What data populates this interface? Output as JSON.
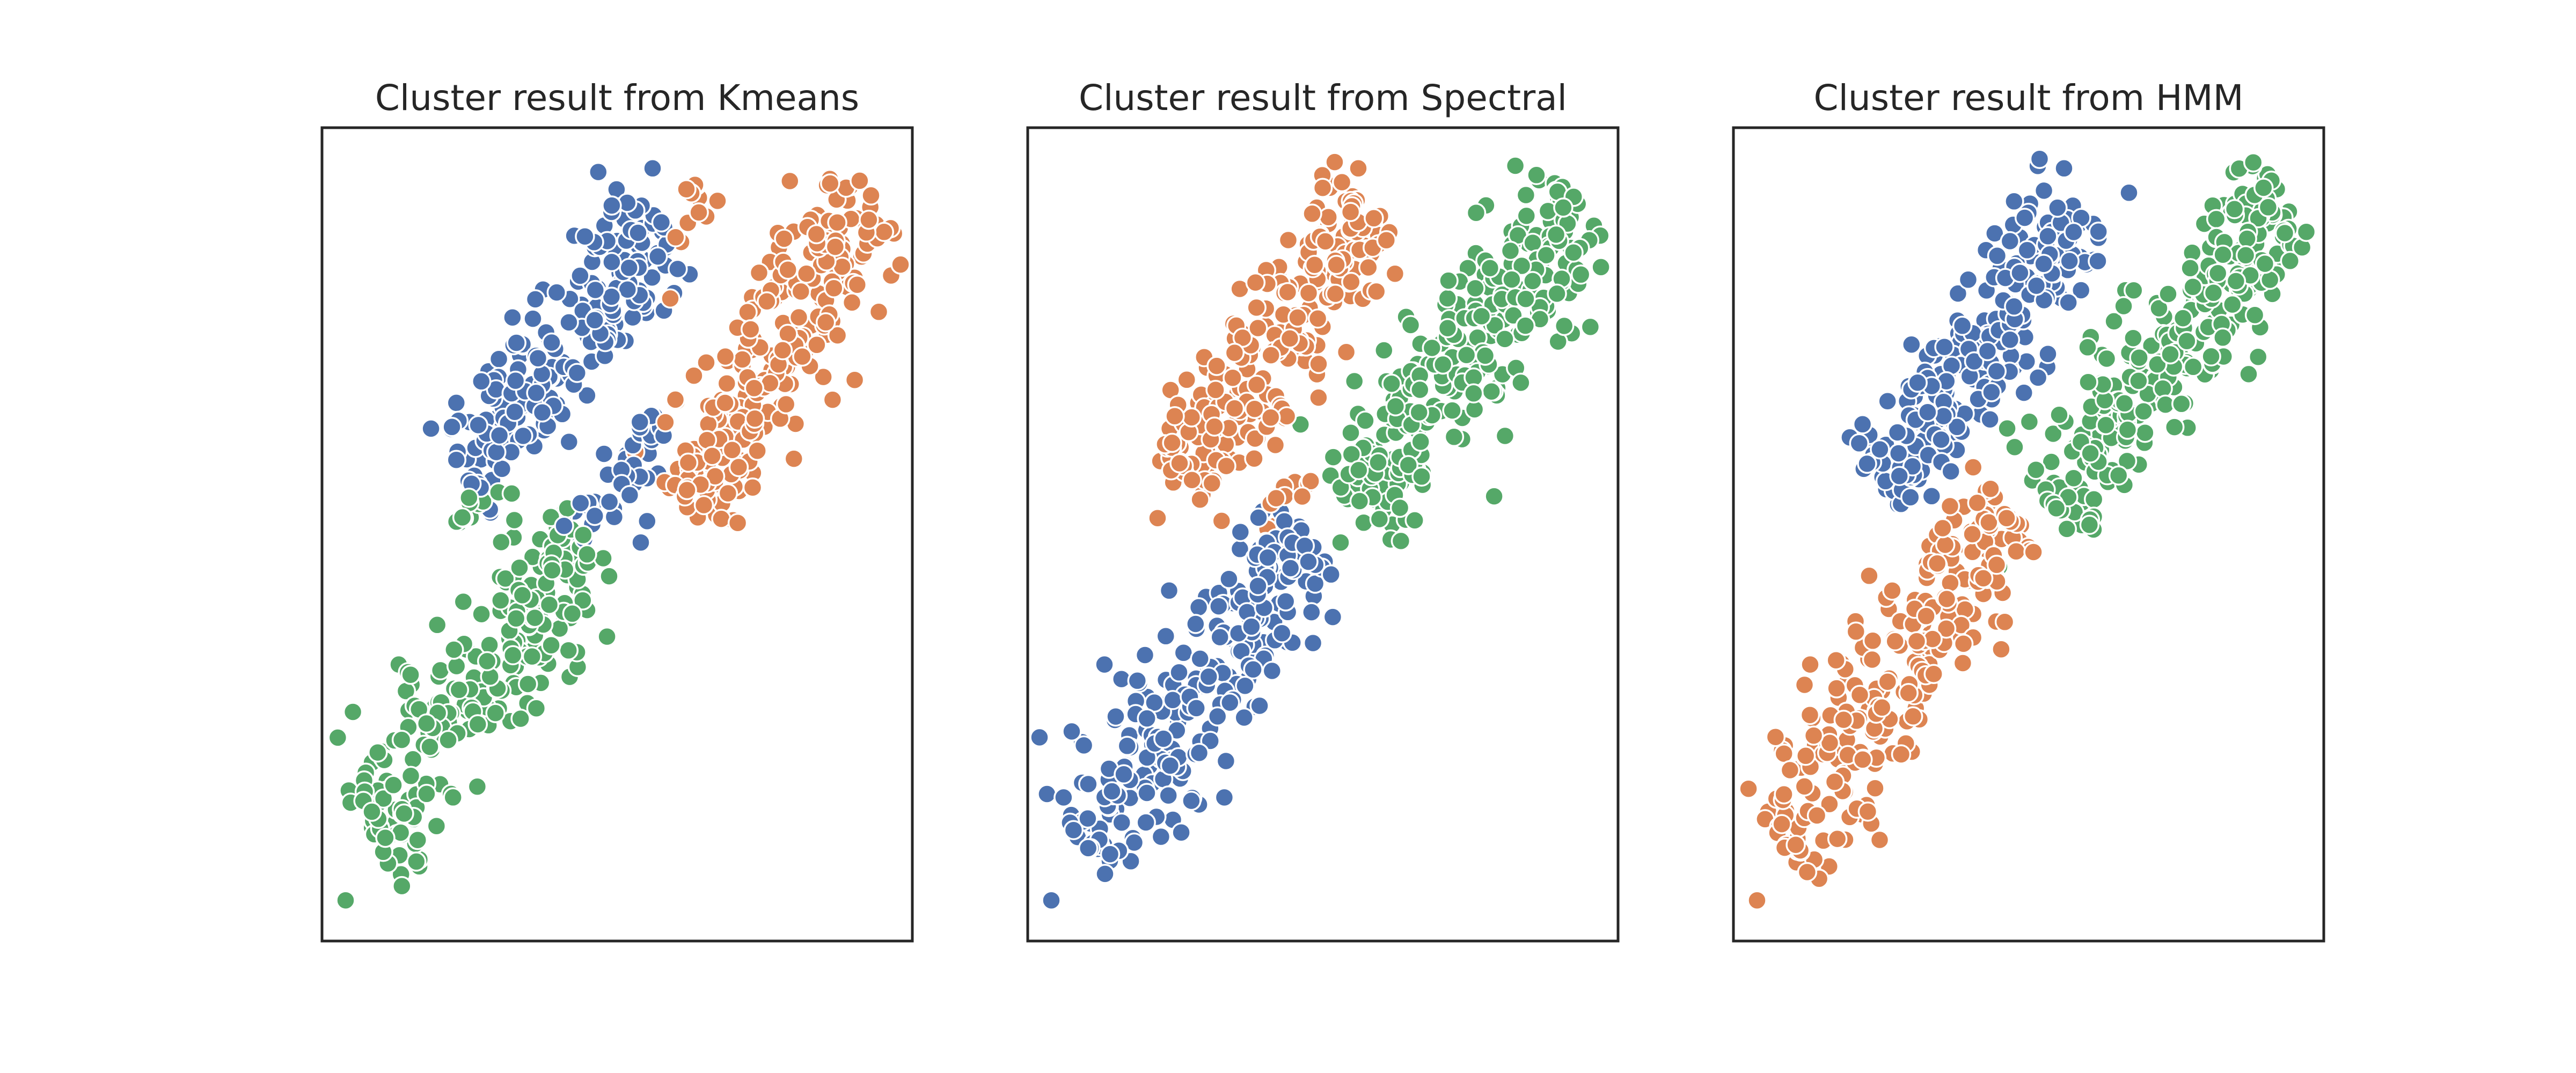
{
  "colors": {
    "blue": "#4c72b0",
    "orange": "#dd8452",
    "green": "#55a868"
  },
  "chart_data": [
    {
      "type": "scatter",
      "title": "Cluster result from Kmeans",
      "xlabel": "",
      "ylabel": "",
      "grid": false,
      "axes_ticks": false,
      "xlim": [
        0,
        1
      ],
      "ylim": [
        0,
        1
      ],
      "series": [
        {
          "color": "#4c72b0",
          "segments": [
            {
              "x0": 0.24,
              "y0": 0.57,
              "x1": 0.57,
              "y1": 0.89,
              "width": 0.11,
              "n": 210
            },
            {
              "x0": 0.5,
              "y0": 0.55,
              "x1": 0.57,
              "y1": 0.65,
              "width": 0.05,
              "n": 30
            },
            {
              "x0": 0.41,
              "y0": 0.5,
              "x1": 0.49,
              "y1": 0.55,
              "width": 0.05,
              "n": 14
            }
          ],
          "extras": [
            [
              0.56,
              0.95
            ],
            [
              0.54,
              0.49
            ]
          ]
        },
        {
          "color": "#dd8452",
          "segments": [
            {
              "x0": 0.62,
              "y0": 0.53,
              "x1": 0.93,
              "y1": 0.92,
              "width": 0.12,
              "n": 260
            },
            {
              "x0": 0.6,
              "y0": 0.85,
              "x1": 0.64,
              "y1": 0.94,
              "width": 0.03,
              "n": 10
            }
          ],
          "extras": [
            [
              0.59,
              0.79
            ],
            [
              0.67,
              0.91
            ]
          ]
        },
        {
          "color": "#55a868",
          "segments": [
            {
              "x0": 0.08,
              "y0": 0.12,
              "x1": 0.45,
              "y1": 0.5,
              "width": 0.12,
              "n": 250
            },
            {
              "x0": 0.23,
              "y0": 0.51,
              "x1": 0.32,
              "y1": 0.56,
              "width": 0.04,
              "n": 12
            }
          ],
          "extras": [
            [
              0.04,
              0.05
            ],
            [
              0.13,
              0.34
            ]
          ]
        }
      ]
    },
    {
      "type": "scatter",
      "title": "Cluster result from Spectral",
      "xlabel": "",
      "ylabel": "",
      "grid": false,
      "axes_ticks": false,
      "xlim": [
        0,
        1
      ],
      "ylim": [
        0,
        1
      ],
      "series": [
        {
          "color": "#dd8452",
          "segments": [
            {
              "x0": 0.24,
              "y0": 0.57,
              "x1": 0.59,
              "y1": 0.9,
              "width": 0.12,
              "n": 240
            },
            {
              "x0": 0.4,
              "y0": 0.52,
              "x1": 0.49,
              "y1": 0.56,
              "width": 0.04,
              "n": 12
            }
          ],
          "extras": [
            [
              0.56,
              0.95
            ],
            [
              0.22,
              0.52
            ]
          ]
        },
        {
          "color": "#55a868",
          "segments": [
            {
              "x0": 0.55,
              "y0": 0.53,
              "x1": 0.93,
              "y1": 0.91,
              "width": 0.12,
              "n": 280
            }
          ],
          "extras": [
            [
              0.53,
              0.49
            ],
            [
              0.9,
              0.93
            ]
          ]
        },
        {
          "color": "#4c72b0",
          "segments": [
            {
              "x0": 0.09,
              "y0": 0.12,
              "x1": 0.47,
              "y1": 0.5,
              "width": 0.12,
              "n": 260
            }
          ],
          "extras": [
            [
              0.04,
              0.05
            ],
            [
              0.13,
              0.34
            ]
          ]
        }
      ]
    },
    {
      "type": "scatter",
      "title": "Cluster result from HMM",
      "xlabel": "",
      "ylabel": "",
      "grid": false,
      "axes_ticks": false,
      "xlim": [
        0,
        1
      ],
      "ylim": [
        0,
        1
      ],
      "series": [
        {
          "color": "#4c72b0",
          "segments": [
            {
              "x0": 0.24,
              "y0": 0.56,
              "x1": 0.6,
              "y1": 0.9,
              "width": 0.11,
              "n": 250
            }
          ],
          "extras": [
            [
              0.56,
              0.95
            ],
            [
              0.67,
              0.92
            ]
          ]
        },
        {
          "color": "#55a868",
          "segments": [
            {
              "x0": 0.54,
              "y0": 0.53,
              "x1": 0.93,
              "y1": 0.92,
              "width": 0.12,
              "n": 280
            }
          ],
          "extras": [
            [
              0.45,
              0.46
            ],
            [
              0.6,
              0.73
            ]
          ]
        },
        {
          "color": "#dd8452",
          "segments": [
            {
              "x0": 0.08,
              "y0": 0.12,
              "x1": 0.47,
              "y1": 0.53,
              "width": 0.12,
              "n": 260
            }
          ],
          "extras": [
            [
              0.04,
              0.05
            ],
            [
              0.13,
              0.34
            ]
          ]
        }
      ]
    }
  ]
}
